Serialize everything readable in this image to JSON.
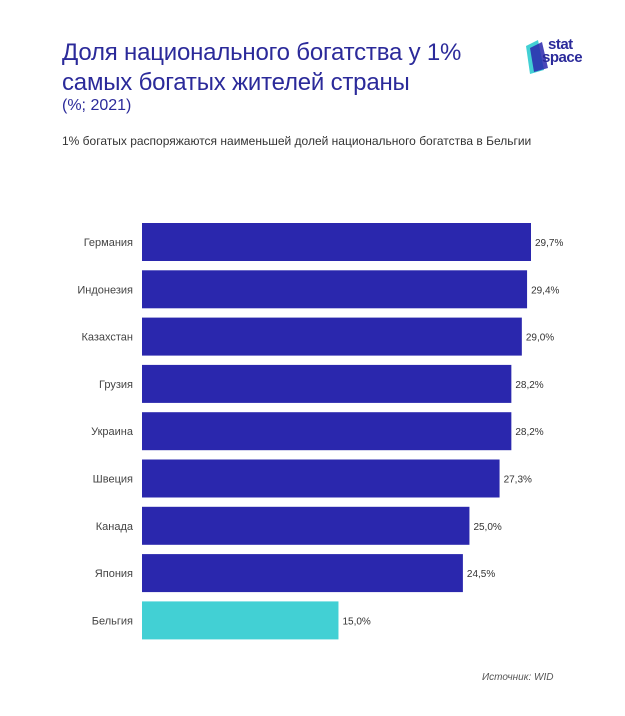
{
  "header": {
    "title": "Доля национального богатства у 1% самых богатых жителей страны",
    "unit": "(%; 2021)",
    "note": "1% богатых распоряжаются наименьшей долей национального богатства в Бельгии"
  },
  "logo": {
    "line1": "stat",
    "line2": "space"
  },
  "footer": {
    "source": "Источник: WID"
  },
  "colors": {
    "bar": "#2a27ad",
    "highlight": "#42d0d4",
    "text": "#2b2a9a"
  },
  "chart_data": {
    "type": "bar",
    "orientation": "horizontal",
    "title": "Доля национального богатства у 1% самых богатых жителей страны",
    "subtitle": "(%; 2021)",
    "categories": [
      "Германия",
      "Индонезия",
      "Казахстан",
      "Грузия",
      "Украина",
      "Швеция",
      "Канада",
      "Япония",
      "Бельгия"
    ],
    "values": [
      29.7,
      29.4,
      29.0,
      28.2,
      28.2,
      27.3,
      25.0,
      24.5,
      15.0
    ],
    "labels": [
      "29,7%",
      "29,4%",
      "29,0%",
      "28,2%",
      "28,2%",
      "27,3%",
      "25,0%",
      "24,5%",
      "15,0%"
    ],
    "highlight": "Бельгия",
    "xlim": [
      0,
      29.7
    ],
    "grid": false,
    "legend": "none"
  }
}
